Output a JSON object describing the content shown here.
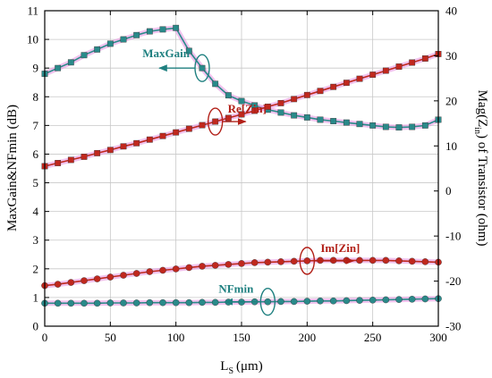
{
  "chart_data": {
    "type": "line",
    "xlabel_main": "L",
    "xlabel_sub": "S",
    "xlabel_unit": "(μm)",
    "ylabel_left": "MaxGain&NFmin (dB)",
    "ylabel_right_prefix": "Mag(Z",
    "ylabel_right_sub": "in",
    "ylabel_right_suffix": ") of Transistor (ohm)",
    "xlim": [
      0,
      300
    ],
    "ylim_left": [
      0,
      11
    ],
    "ylim_right": [
      -30,
      40
    ],
    "x_ticks": [
      "0",
      "50",
      "100",
      "150",
      "200",
      "250",
      "300"
    ],
    "y_left_ticks": [
      "0",
      "1",
      "2",
      "3",
      "4",
      "5",
      "6",
      "7",
      "8",
      "9",
      "10",
      "11"
    ],
    "y_right_ticks": [
      "-30",
      "-20",
      "-10",
      "0",
      "10",
      "20",
      "30",
      "40"
    ],
    "grid": true,
    "x": [
      0,
      10,
      20,
      30,
      40,
      50,
      60,
      70,
      80,
      90,
      100,
      110,
      120,
      130,
      140,
      150,
      160,
      170,
      180,
      190,
      200,
      210,
      220,
      230,
      240,
      250,
      260,
      270,
      280,
      290,
      300
    ],
    "series": [
      {
        "name": "MaxGain",
        "axis": "left",
        "color": "#2a8a8a",
        "marker": "square",
        "values": [
          8.8,
          9.0,
          9.2,
          9.45,
          9.65,
          9.85,
          10.0,
          10.15,
          10.28,
          10.35,
          10.4,
          9.6,
          9.0,
          8.45,
          8.05,
          7.85,
          7.7,
          7.55,
          7.45,
          7.35,
          7.28,
          7.2,
          7.15,
          7.1,
          7.05,
          7.0,
          6.95,
          6.93,
          6.95,
          7.0,
          7.2
        ]
      },
      {
        "name": "NFmin",
        "axis": "left",
        "color": "#2a8a8a",
        "marker": "circle",
        "values": [
          0.8,
          0.8,
          0.8,
          0.8,
          0.8,
          0.81,
          0.81,
          0.81,
          0.82,
          0.82,
          0.82,
          0.82,
          0.83,
          0.83,
          0.84,
          0.84,
          0.85,
          0.85,
          0.86,
          0.86,
          0.87,
          0.88,
          0.88,
          0.89,
          0.9,
          0.91,
          0.92,
          0.93,
          0.94,
          0.95,
          0.96
        ]
      },
      {
        "name": "Re[Zin]",
        "axis": "right",
        "color": "#c0281e",
        "marker": "square",
        "values": [
          5.5,
          6.2,
          6.9,
          7.6,
          8.4,
          9.1,
          9.9,
          10.6,
          11.4,
          12.2,
          13.0,
          13.8,
          14.6,
          15.4,
          16.2,
          17.0,
          17.8,
          18.7,
          19.5,
          20.4,
          21.3,
          22.2,
          23.1,
          24.0,
          24.9,
          25.8,
          26.7,
          27.6,
          28.5,
          29.4,
          30.4
        ]
      },
      {
        "name": "Im[Zin]",
        "axis": "right",
        "color": "#c0281e",
        "marker": "circle",
        "values": [
          -21.0,
          -20.7,
          -20.3,
          -19.9,
          -19.5,
          -19.1,
          -18.7,
          -18.3,
          -17.9,
          -17.6,
          -17.3,
          -17.0,
          -16.7,
          -16.5,
          -16.3,
          -16.1,
          -15.9,
          -15.8,
          -15.7,
          -15.6,
          -15.5,
          -15.4,
          -15.4,
          -15.4,
          -15.4,
          -15.4,
          -15.4,
          -15.5,
          -15.6,
          -15.7,
          -15.8
        ]
      }
    ],
    "annotations": [
      {
        "text": "MaxGain",
        "series": "MaxGain",
        "direction": "left",
        "color": "#1f8080"
      },
      {
        "text": "Re[Zin]",
        "series": "Re[Zin]",
        "direction": "right",
        "color": "#b22018"
      },
      {
        "text": "Im[Zin]",
        "series": "Im[Zin]",
        "direction": "right",
        "color": "#b22018"
      },
      {
        "text": "NFmin",
        "series": "NFmin",
        "direction": "left",
        "color": "#1f8080"
      }
    ]
  }
}
